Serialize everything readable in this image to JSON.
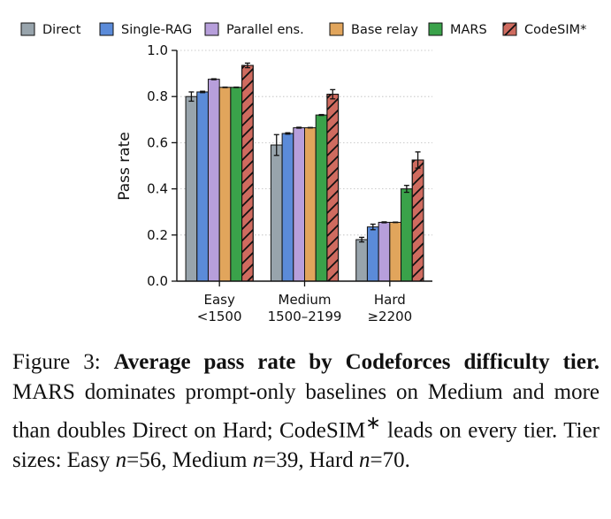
{
  "chart_data": {
    "type": "bar",
    "ylabel": "Pass rate",
    "ylim": [
      0,
      1.0
    ],
    "yticks": [
      "0.0",
      "0.2",
      "0.4",
      "0.6",
      "0.8",
      "1.0"
    ],
    "grid": "horizontal-dotted",
    "legend_position": "top",
    "categories": [
      {
        "line1": "Easy",
        "line2": "<1500"
      },
      {
        "line1": "Medium",
        "line2": "1500–2199"
      },
      {
        "line1": "Hard",
        "line2": "≥2200"
      }
    ],
    "series": [
      {
        "name": "Direct",
        "color": "#98a4ac",
        "hatch": false,
        "values": [
          0.8,
          0.59,
          0.18
        ],
        "err": [
          0.02,
          0.045,
          0.01
        ]
      },
      {
        "name": "Single-RAG",
        "color": "#5b8bd9",
        "hatch": false,
        "values": [
          0.82,
          0.64,
          0.235
        ],
        "err": [
          0.003,
          0.003,
          0.012
        ]
      },
      {
        "name": "Parallel ens.",
        "color": "#b79fdb",
        "hatch": false,
        "values": [
          0.875,
          0.665,
          0.255
        ],
        "err": [
          0.002,
          0.002,
          0.002
        ]
      },
      {
        "name": "Base relay",
        "color": "#e1a55c",
        "hatch": false,
        "values": [
          0.84,
          0.665,
          0.255
        ],
        "err": [
          0.001,
          0.001,
          0.001
        ]
      },
      {
        "name": "MARS",
        "color": "#3aa24a",
        "hatch": false,
        "values": [
          0.84,
          0.72,
          0.4
        ],
        "err": [
          0.001,
          0.002,
          0.015
        ]
      },
      {
        "name": "CodeSIM*",
        "color": "#cf6b5f",
        "hatch": true,
        "values": [
          0.935,
          0.81,
          0.525
        ],
        "err": [
          0.01,
          0.02,
          0.035
        ]
      }
    ]
  },
  "caption": {
    "figure_label": "Figure 3:",
    "title": "Average pass rate by Codeforces difficulty tier.",
    "text_a": " MARS dominates prompt-only baselines on Medium and more than doubles Direct on Hard; CodeSIM",
    "sup": "∗",
    "text_b": " leads on every tier. Tier sizes: Easy ",
    "n1_var": "n",
    "n1_val": "=56, Medium ",
    "n2_var": "n",
    "n2_val": "=39, Hard ",
    "n3_var": "n",
    "n3_val": "=70."
  }
}
